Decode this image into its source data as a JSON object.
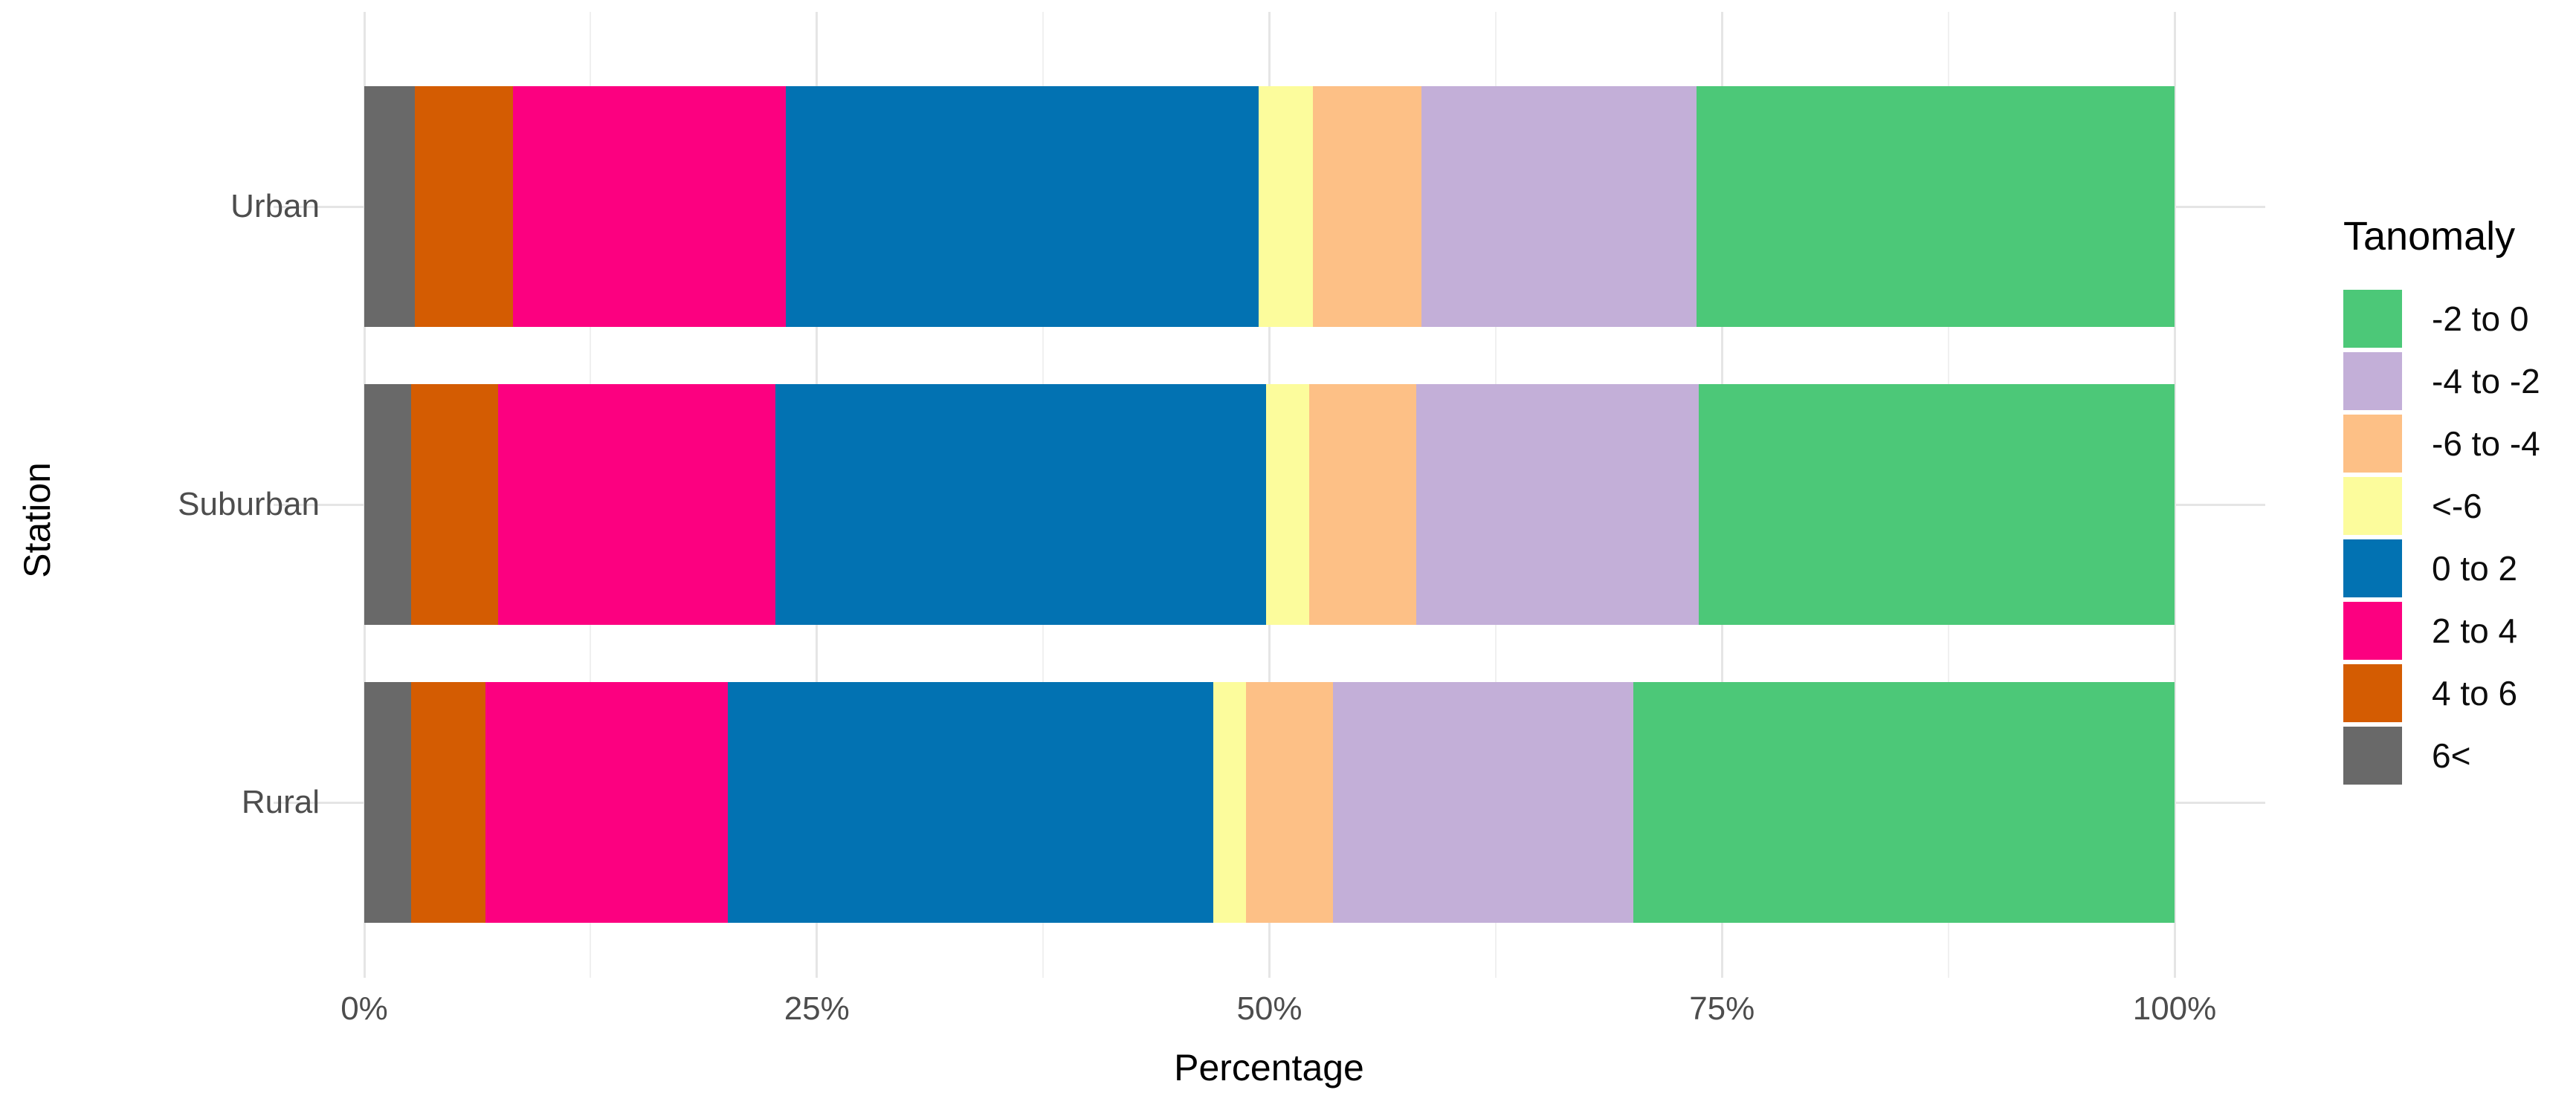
{
  "figure": {
    "background": "#ffffff"
  },
  "chart_data": {
    "type": "bar",
    "orientation": "horizontal",
    "stacked": true,
    "percent_scale": true,
    "title": "",
    "xlabel": "Percentage",
    "ylabel": "Station",
    "categories": [
      "Urban",
      "Suburban",
      "Rural"
    ],
    "x_ticks": [
      {
        "label": "0%",
        "value": 0
      },
      {
        "label": "25%",
        "value": 25
      },
      {
        "label": "50%",
        "value": 50
      },
      {
        "label": "75%",
        "value": 75
      },
      {
        "label": "100%",
        "value": 100
      }
    ],
    "x_minor_gridlines": [
      12.5,
      37.5,
      62.5,
      87.5
    ],
    "xlim": [
      0,
      100
    ],
    "grid": true,
    "legend_position": "right",
    "legend_title": "Tanomaly",
    "legend": [
      {
        "label": "-2 to 0",
        "color": "#4CC878"
      },
      {
        "label": "-4 to -2",
        "color": "#C3AFD8"
      },
      {
        "label": "-6 to -4",
        "color": "#FDC086"
      },
      {
        "label": "<-6",
        "color": "#FCFC9C"
      },
      {
        "label": "0 to 2",
        "color": "#0272B2"
      },
      {
        "label": "2 to 4",
        "color": "#FC0080"
      },
      {
        "label": "4 to 6",
        "color": "#D45C02"
      },
      {
        "label": "6<",
        "color": "#696969"
      }
    ],
    "series": [
      {
        "name": "6<",
        "color": "#696969",
        "values": [
          2.8,
          2.6,
          2.6
        ]
      },
      {
        "name": "4 to 6",
        "color": "#D45C02",
        "values": [
          5.4,
          4.8,
          4.1
        ]
      },
      {
        "name": "2 to 4",
        "color": "#FC0080",
        "values": [
          15.1,
          15.3,
          13.4
        ]
      },
      {
        "name": "0 to 2",
        "color": "#0272B2",
        "values": [
          26.1,
          27.1,
          26.8
        ]
      },
      {
        "name": "<-6",
        "color": "#FCFC9C",
        "values": [
          3.0,
          2.4,
          1.8
        ]
      },
      {
        "name": "-6 to -4",
        "color": "#FDC086",
        "values": [
          6.0,
          5.9,
          4.8
        ]
      },
      {
        "name": "-4 to -2",
        "color": "#C3AFD8",
        "values": [
          15.2,
          15.6,
          16.6
        ]
      },
      {
        "name": "-2 to 0",
        "color": "#4CC878",
        "values": [
          26.4,
          26.3,
          29.9
        ]
      }
    ]
  }
}
